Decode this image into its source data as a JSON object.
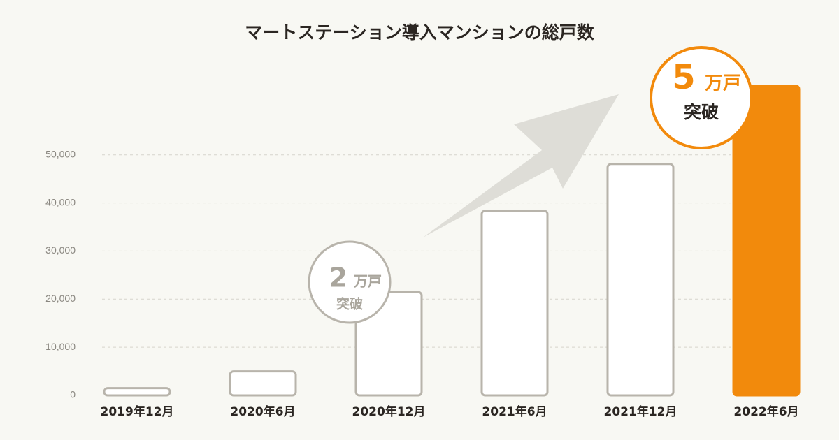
{
  "chart_data": {
    "type": "bar",
    "title": "マートステーション導入マンションの総戸数",
    "categories": [
      "2019年12月",
      "2020年6月",
      "2020年12月",
      "2021年6月",
      "2021年12月",
      "2022年6月"
    ],
    "values": [
      1500,
      5000,
      21500,
      38400,
      48100,
      64400
    ],
    "colors": [
      "#ffffff",
      "#ffffff",
      "#ffffff",
      "#ffffff",
      "#ffffff",
      "#f28a0c"
    ],
    "edge_colors": [
      "#b8b4ab",
      "#b8b4ab",
      "#b8b4ab",
      "#b8b4ab",
      "#b8b4ab",
      "#f28a0c"
    ],
    "ylim": [
      0,
      70000
    ],
    "yticks": [
      0,
      {
        "value": 10000,
        "label": "10,000"
      },
      {
        "value": 20000,
        "label": "20,000"
      },
      {
        "value": 30000,
        "label": "30,000"
      },
      {
        "value": 40000,
        "label": "40,000"
      },
      {
        "value": 50000,
        "label": "50,000"
      }
    ],
    "grid": true,
    "annotations": [
      {
        "number": "2",
        "unit": "万戸",
        "text": "突破"
      },
      {
        "number": "5",
        "unit": "万戸",
        "text": "突破"
      }
    ]
  }
}
